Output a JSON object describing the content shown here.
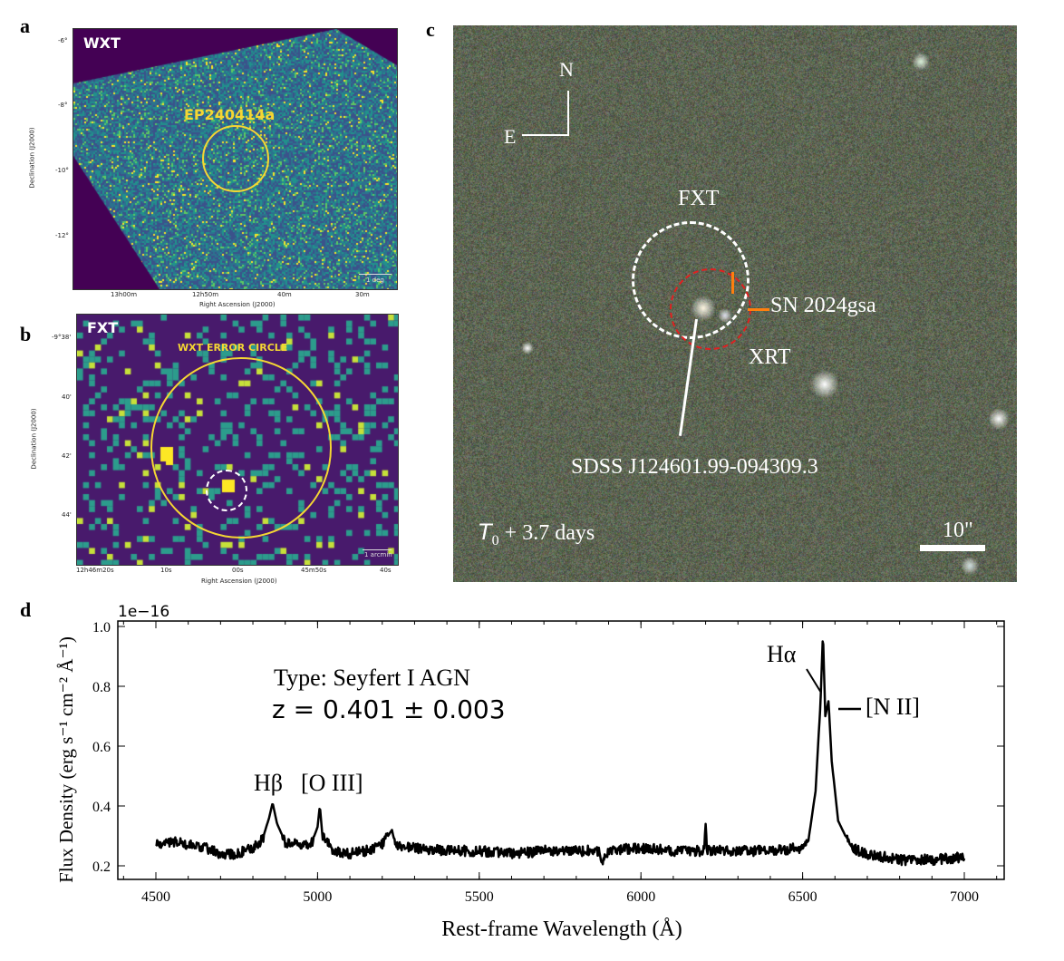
{
  "panels": {
    "a": {
      "label": "a",
      "instrument": "WXT",
      "source": "EP240414a",
      "scalebar": "1 deg",
      "xlabel": "Right Ascension (J2000)",
      "ylabel": "Declination (J2000)",
      "xticks": [
        "13h00m",
        "12h50m",
        "40m",
        "30m"
      ],
      "yticks": [
        "-6°",
        "-8°",
        "-10°",
        "-12°"
      ]
    },
    "b": {
      "label": "b",
      "instrument": "FXT",
      "circle_label": "WXT ERROR CIRCLE",
      "scalebar": "1 arcmin",
      "xlabel": "Right Ascension (J2000)",
      "ylabel": "Declination (J2000)",
      "xticks": [
        "12h46m20s",
        "10s",
        "00s",
        "45m50s",
        "40s"
      ],
      "yticks": [
        "-9°38'",
        "40'",
        "42'",
        "44'"
      ]
    },
    "c": {
      "label": "c",
      "north": "N",
      "east": "E",
      "fxt": "FXT",
      "xrt": "XRT",
      "sn": "SN 2024gsa",
      "host": "SDSS J124601.99-094309.3",
      "epoch_prefix": "T",
      "epoch_sub": "0",
      "epoch_suffix": " + 3.7 days",
      "scalebar": "10\""
    },
    "d": {
      "label": "d"
    }
  },
  "chart_data": {
    "type": "line",
    "xlabel": "Rest-frame Wavelength (Å)",
    "ylabel": "Flux Density (erg s⁻¹ cm⁻² Å⁻¹)",
    "offset_label": "1e−16",
    "xlim": [
      4400,
      7120
    ],
    "ylim": [
      0.16,
      1.03
    ],
    "xticks": [
      4500,
      5000,
      5500,
      6000,
      6500,
      7000
    ],
    "yticks": [
      0.2,
      0.4,
      0.6,
      0.8,
      1.0
    ],
    "ytick_labels": [
      "0.2",
      "0.4",
      "0.6",
      "0.8",
      "1.0"
    ],
    "annotations": {
      "type_text": "Type: Seyfert I AGN",
      "z_text": "z = 0.401 ± 0.003",
      "hbeta": "Hβ",
      "oiii": "[O III]",
      "halpha": "Hα",
      "nii": "[N II]"
    },
    "series": [
      {
        "name": "spectrum",
        "x": [
          4500,
          4550,
          4600,
          4650,
          4700,
          4750,
          4800,
          4830,
          4850,
          4861,
          4875,
          4900,
          4950,
          4980,
          5000,
          5007,
          5015,
          5050,
          5100,
          5150,
          5200,
          5230,
          5240,
          5300,
          5400,
          5500,
          5600,
          5700,
          5800,
          5870,
          5880,
          5900,
          6000,
          6100,
          6195,
          6200,
          6205,
          6300,
          6400,
          6500,
          6520,
          6540,
          6555,
          6563,
          6570,
          6580,
          6590,
          6610,
          6650,
          6700,
          6750,
          6800,
          6900,
          7000
        ],
        "y": [
          0.27,
          0.28,
          0.27,
          0.26,
          0.24,
          0.24,
          0.26,
          0.29,
          0.36,
          0.41,
          0.34,
          0.28,
          0.27,
          0.27,
          0.33,
          0.4,
          0.3,
          0.25,
          0.24,
          0.25,
          0.27,
          0.32,
          0.27,
          0.26,
          0.25,
          0.25,
          0.24,
          0.25,
          0.25,
          0.25,
          0.21,
          0.25,
          0.26,
          0.25,
          0.25,
          0.34,
          0.25,
          0.25,
          0.25,
          0.26,
          0.3,
          0.45,
          0.74,
          0.98,
          0.7,
          0.75,
          0.55,
          0.35,
          0.26,
          0.24,
          0.23,
          0.22,
          0.22,
          0.23
        ]
      }
    ]
  },
  "colors": {
    "viridis_bg": "#440154",
    "yellow": "#f5d633",
    "red": "#e02020",
    "orange": "#ff7f0e"
  }
}
